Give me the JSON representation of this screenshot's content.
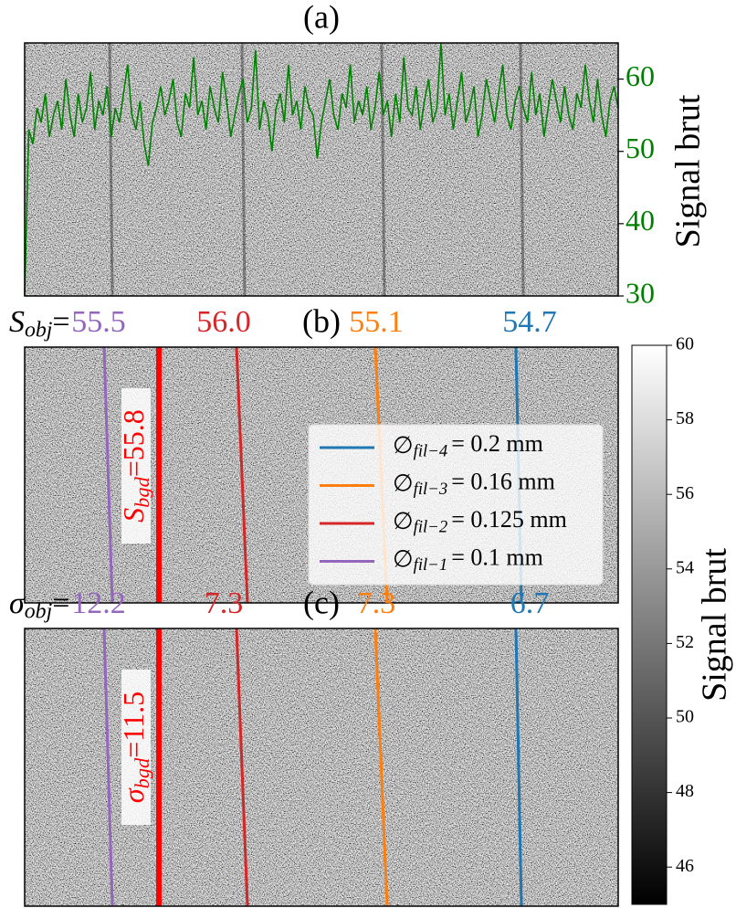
{
  "chart_data": [
    {
      "type": "line",
      "title": "(a)",
      "y2label": "Signal brut",
      "y2lim": [
        30,
        65
      ],
      "y2ticks": [
        30,
        40,
        50,
        60
      ],
      "tick_color": "green",
      "series": [
        {
          "color": "green",
          "axis": "y2",
          "values": [
            30,
            53,
            51,
            56,
            54,
            58,
            52,
            55,
            57,
            53,
            60,
            55,
            52,
            58,
            54,
            56,
            61,
            53,
            57,
            55,
            59,
            52,
            56,
            54,
            58,
            62,
            55,
            53,
            57,
            51,
            48,
            54,
            56,
            59,
            55,
            57,
            60,
            54,
            52,
            58,
            56,
            63,
            55,
            57,
            53,
            59,
            56,
            54,
            61,
            57,
            52,
            55,
            58,
            60,
            54,
            56,
            64,
            53,
            57,
            55,
            50,
            56,
            58,
            54,
            62,
            55,
            57,
            53,
            59,
            56,
            55,
            49,
            54,
            57,
            60,
            55,
            53,
            58,
            56,
            62,
            54,
            57,
            55,
            59,
            53,
            56,
            61,
            55,
            57,
            52,
            58,
            54,
            63,
            56,
            55,
            59,
            53,
            57,
            60,
            54,
            56,
            65,
            55,
            58,
            53,
            57,
            61,
            54,
            56,
            59,
            52,
            55,
            60,
            57,
            54,
            58,
            62,
            55,
            53,
            57,
            59,
            56,
            54,
            61,
            55,
            58,
            52,
            56,
            60,
            57,
            54,
            59,
            55,
            53,
            58,
            56,
            62,
            57,
            54,
            60,
            55,
            52,
            57,
            59,
            56
          ]
        }
      ]
    },
    {
      "type": "image",
      "title": "(b)",
      "prefix": {
        "symbol": "S",
        "sub": "obj",
        "text": "="
      },
      "annotation": {
        "symbol": "S",
        "sub": "bgd",
        "text": "=",
        "value": 55.8,
        "color": "red"
      },
      "legend": "lower right",
      "series": [
        {
          "name": "∅",
          "name_sub": "fil−4",
          "name_rest": "= 0.2 mm",
          "color": "#1f77b4",
          "value": 54.7,
          "value_label": "54.7"
        },
        {
          "name": "∅",
          "name_sub": "fil−3",
          "name_rest": "= 0.16 mm",
          "color": "#ff7f0e",
          "value": 55.1,
          "value_label": "55.1"
        },
        {
          "name": "∅",
          "name_sub": "fil−2",
          "name_rest": "= 0.125 mm",
          "color": "#d62728",
          "value": 56.0,
          "value_label": "56.0"
        },
        {
          "name": "∅",
          "name_sub": "fil−1",
          "name_rest": "= 0.1 mm",
          "color": "#9467bd",
          "value": 55.5,
          "value_label": "55.5"
        }
      ]
    },
    {
      "type": "image",
      "title": "(c)",
      "prefix": {
        "symbol": "σ",
        "sub": "obj",
        "text": "="
      },
      "annotation": {
        "symbol": "σ",
        "sub": "bgd",
        "text": "=",
        "value": 11.5,
        "color": "red"
      },
      "series": [
        {
          "color": "#1f77b4",
          "value": 6.7,
          "value_label": "6.7"
        },
        {
          "color": "#ff7f0e",
          "value": 7.3,
          "value_label": "7.3"
        },
        {
          "color": "#d62728",
          "value": 7.3,
          "value_label": "7.3"
        },
        {
          "color": "#9467bd",
          "value": 12.2,
          "value_label": "12.2"
        }
      ]
    },
    {
      "type": "colorbar",
      "label": "Signal brut",
      "lim": [
        45,
        60
      ],
      "ticks": [
        46,
        48,
        50,
        52,
        54,
        56,
        58,
        60
      ],
      "colormap": "gray"
    }
  ]
}
